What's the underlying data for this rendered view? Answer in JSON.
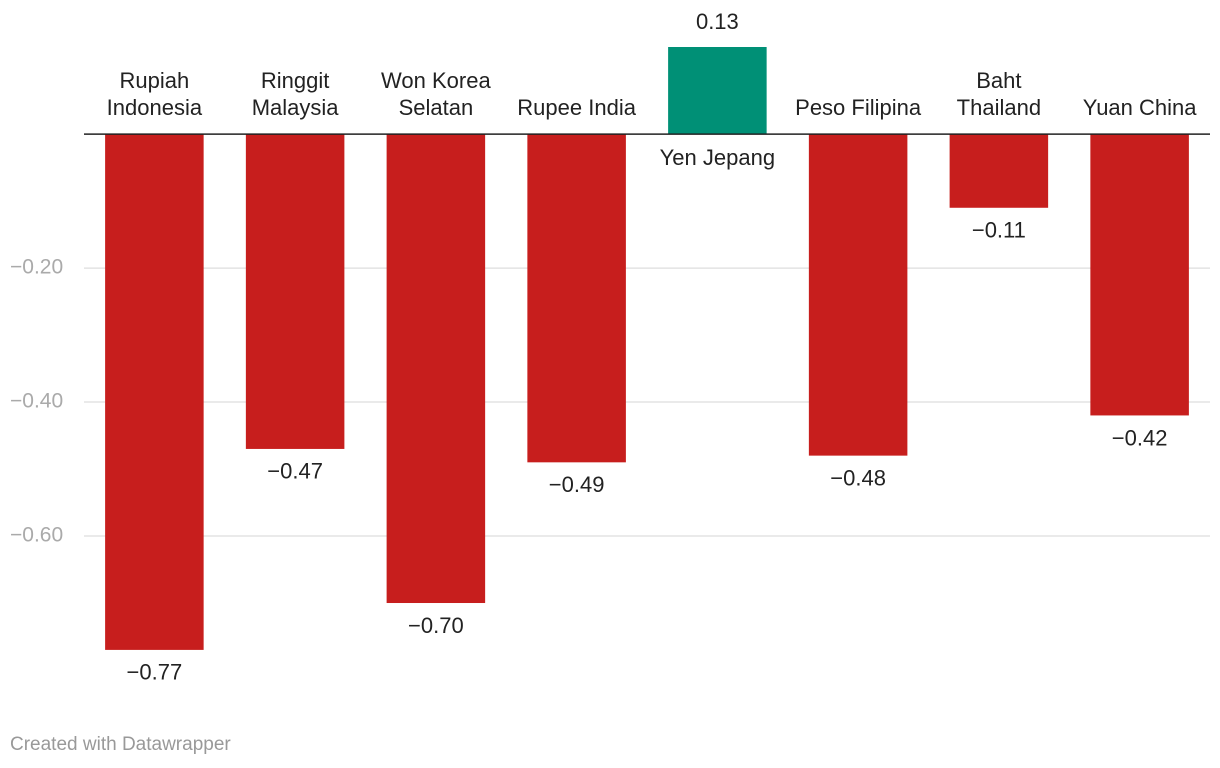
{
  "chart_data": {
    "type": "bar",
    "categories": [
      "Rupiah Indonesia",
      "Ringgit Malaysia",
      "Won Korea Selatan",
      "Rupee India",
      "Yen Jepang",
      "Peso Filipina",
      "Baht Thailand",
      "Yuan China"
    ],
    "values": [
      -0.77,
      -0.47,
      -0.7,
      -0.49,
      0.13,
      -0.48,
      -0.11,
      -0.42
    ],
    "value_labels": [
      "−0.77",
      "−0.47",
      "−0.70",
      "−0.49",
      "0.13",
      "−0.48",
      "−0.11",
      "−0.42"
    ],
    "colors": [
      "#c71e1d",
      "#c71e1d",
      "#c71e1d",
      "#c71e1d",
      "#009076",
      "#c71e1d",
      "#c71e1d",
      "#c71e1d"
    ],
    "ylim": [
      -0.8,
      0.13
    ],
    "yticks": [
      {
        "value": -0.2,
        "label": "−0.20"
      },
      {
        "value": -0.4,
        "label": "−0.40"
      },
      {
        "value": -0.6,
        "label": "−0.60"
      }
    ],
    "grid": true,
    "footer": "Created with Datawrapper"
  }
}
